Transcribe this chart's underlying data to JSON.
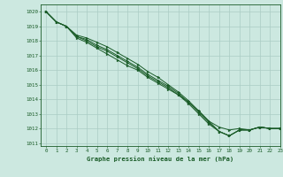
{
  "title": "Graphe pression niveau de la mer (hPa)",
  "xlim": [
    -0.5,
    23
  ],
  "ylim": [
    1010.8,
    1020.5
  ],
  "yticks": [
    1011,
    1012,
    1013,
    1014,
    1015,
    1016,
    1017,
    1018,
    1019,
    1020
  ],
  "xticks": [
    0,
    1,
    2,
    3,
    4,
    5,
    6,
    7,
    8,
    9,
    10,
    11,
    12,
    13,
    14,
    15,
    16,
    17,
    18,
    19,
    20,
    21,
    22,
    23
  ],
  "bg_color": "#cce8e0",
  "grid_color": "#aaccc4",
  "line_color": "#1a5c28",
  "series": [
    [
      1020.0,
      1019.3,
      1019.0,
      1018.2,
      1017.9,
      1017.5,
      1017.1,
      1016.7,
      1016.3,
      1016.0,
      1015.5,
      1015.1,
      1014.7,
      1014.3,
      1013.8,
      1013.2,
      1012.5,
      1012.1,
      1011.9,
      1012.0,
      1011.9,
      1012.1,
      1012.0,
      1012.0
    ],
    [
      1020.0,
      1019.3,
      1019.0,
      1018.3,
      1018.0,
      1017.6,
      1017.3,
      1016.9,
      1016.5,
      1016.1,
      1015.6,
      1015.2,
      1014.8,
      1014.3,
      1013.7,
      1013.0,
      1012.3,
      1011.8,
      1011.5,
      1011.9,
      1011.9,
      1012.1,
      1012.0,
      1012.0
    ],
    [
      1020.0,
      1019.3,
      1019.0,
      1018.3,
      1018.1,
      1017.7,
      1017.4,
      1017.0,
      1016.6,
      1016.2,
      1015.7,
      1015.3,
      1014.9,
      1014.4,
      1013.8,
      1013.1,
      1012.4,
      1011.8,
      1011.5,
      1011.9,
      1011.9,
      1012.1,
      1012.0,
      1012.0
    ],
    [
      1020.0,
      1019.3,
      1019.0,
      1018.4,
      1018.2,
      1017.9,
      1017.6,
      1017.2,
      1016.8,
      1016.4,
      1015.9,
      1015.5,
      1015.0,
      1014.5,
      1013.9,
      1013.2,
      1012.5,
      1011.8,
      1011.5,
      1011.9,
      1011.9,
      1012.1,
      1012.0,
      1012.0
    ]
  ]
}
